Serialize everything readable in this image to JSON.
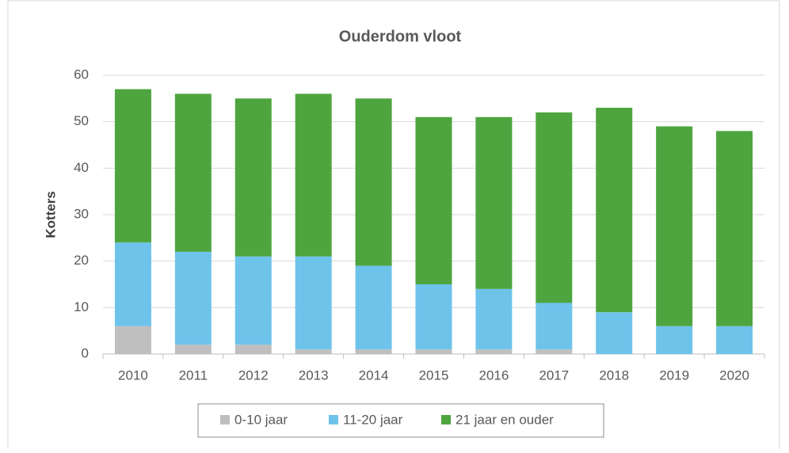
{
  "chart_data": {
    "type": "stacked_bar",
    "title": "Ouderdom vloot",
    "y_label": "Kotters",
    "categories": [
      "2010",
      "2011",
      "2012",
      "2013",
      "2014",
      "2015",
      "2016",
      "2017",
      "2018",
      "2019",
      "2020"
    ],
    "series": [
      {
        "name": "0-10 jaar",
        "color": "#bfbfbf",
        "values": [
          6,
          2,
          2,
          1,
          1,
          1,
          1,
          1,
          0,
          0,
          0
        ]
      },
      {
        "name": "11-20 jaar",
        "color": "#6ec3ea",
        "values": [
          18,
          20,
          19,
          20,
          18,
          14,
          13,
          10,
          9,
          6,
          6
        ]
      },
      {
        "name": "21 jaar en ouder",
        "color": "#4ea53f",
        "values": [
          33,
          34,
          34,
          35,
          36,
          36,
          37,
          41,
          44,
          43,
          42
        ]
      }
    ],
    "ylim": [
      0,
      60
    ],
    "yticks": [
      0,
      10,
      20,
      30,
      40,
      50,
      60
    ],
    "grid": true,
    "legend": "bottom"
  }
}
